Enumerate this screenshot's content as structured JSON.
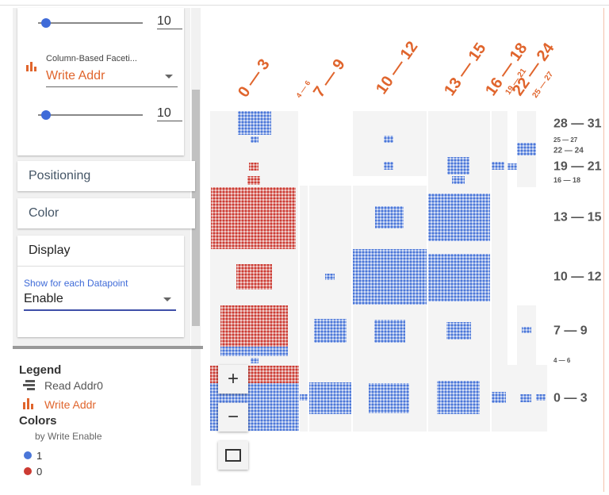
{
  "controls": {
    "slider1_value": "10",
    "facet_label": "Column-Based Faceti...",
    "facet_select": "Write Addr",
    "slider2_value": "10"
  },
  "sections": [
    "Positioning",
    "Color",
    "Display"
  ],
  "display": {
    "label": "Show for each Datapoint",
    "select": "Enable"
  },
  "legend": {
    "title": "Legend",
    "row_item": "Read Addr0",
    "column_item": "Write Addr",
    "colors_title": "Colors",
    "colors_by": "by Write Enable",
    "items": [
      {
        "label": "1",
        "color": "#4a76d8"
      },
      {
        "label": "0",
        "color": "#cc3b33"
      }
    ]
  },
  "zoom": {
    "in": "+",
    "out": "−"
  },
  "column_labels": [
    "0 — 3",
    "4 — 6",
    "7 — 9",
    "10 — 12",
    "13 — 15",
    "16 — 18",
    "19 — 21",
    "22 — 24",
    "25 — 27"
  ],
  "row_labels": [
    "28 — 31",
    "25 — 27",
    "22 — 24",
    "19 — 21",
    "16 — 18",
    "13 — 15",
    "10 — 12",
    "7 — 9",
    "4 — 6",
    "0 — 3"
  ]
}
